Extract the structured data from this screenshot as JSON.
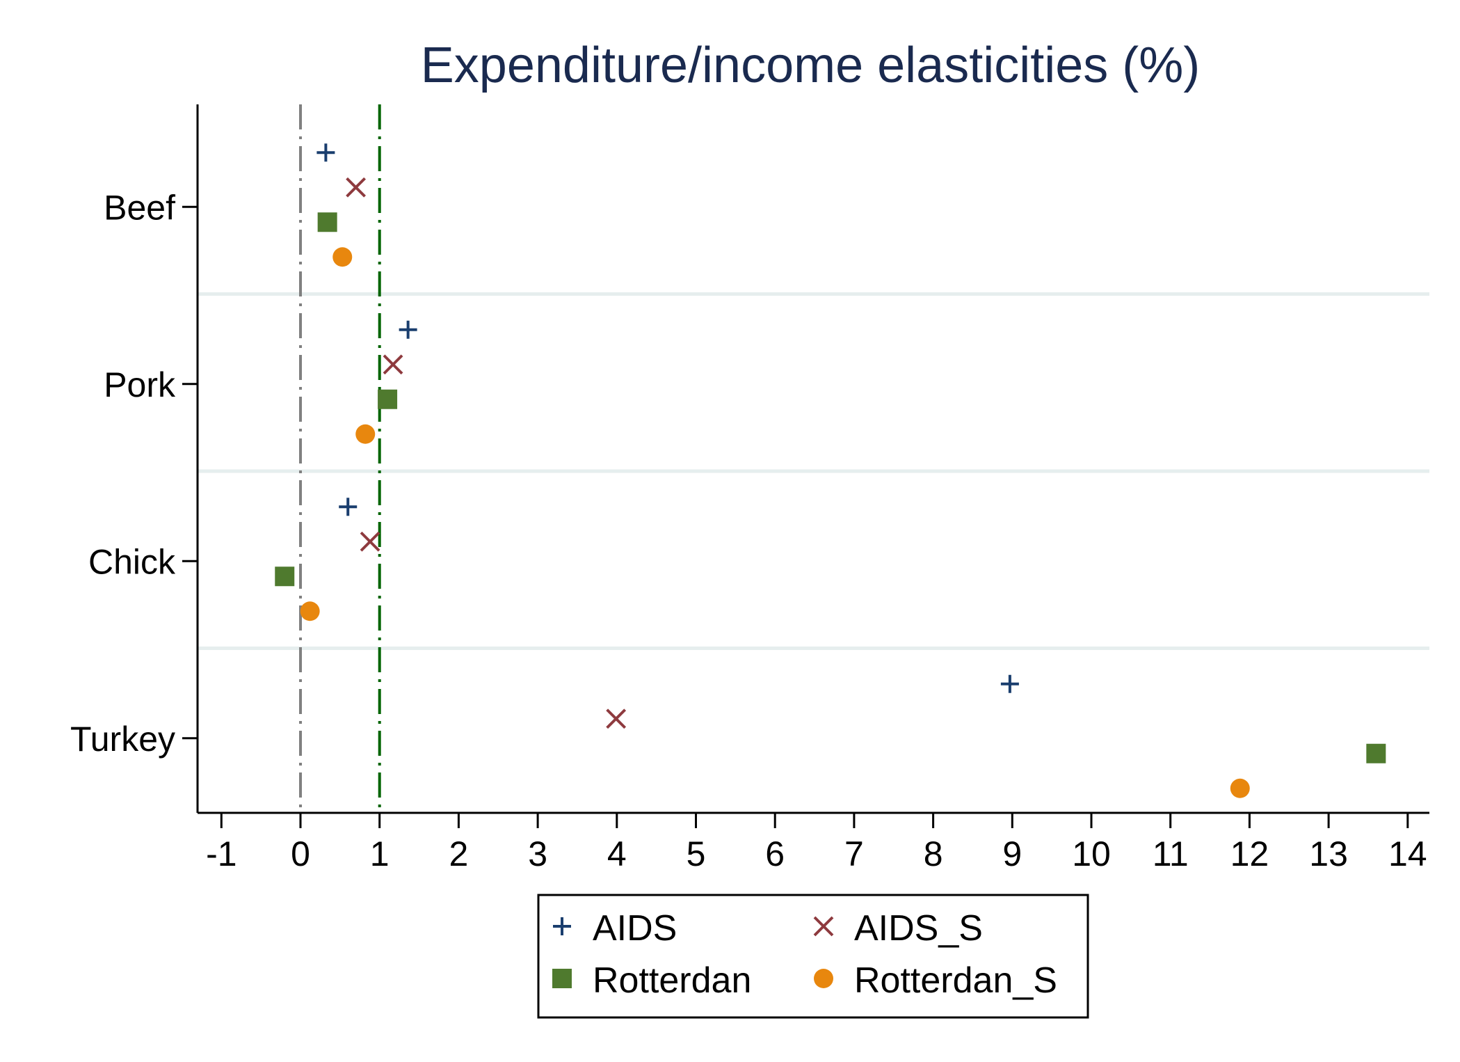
{
  "chart_data": {
    "type": "scatter",
    "title": "Expenditure/income elasticities (%)",
    "xlabel": "",
    "ylabel": "",
    "categories": [
      "Beef",
      "Pork",
      "Chick",
      "Turkey"
    ],
    "x_ticks": [
      "-1",
      "0",
      "1",
      "2",
      "3",
      "4",
      "5",
      "6",
      "7",
      "8",
      "9",
      "10",
      "11",
      "12",
      "13",
      "14"
    ],
    "xlim": [
      -1.3,
      14.3
    ],
    "grid": false,
    "legend_position": "bottom",
    "reference_lines": [
      {
        "value": 0,
        "color": "#808080",
        "style": "dash-dot"
      },
      {
        "value": 1,
        "color": "#006400",
        "style": "dash-dot"
      }
    ],
    "series": [
      {
        "name": "AIDS",
        "marker": "plus",
        "color": "#1a3e6e",
        "values": [
          0.32,
          1.36,
          0.6,
          8.97
        ]
      },
      {
        "name": "AIDS_S",
        "marker": "cross",
        "color": "#8e3a3e",
        "values": [
          0.7,
          1.17,
          0.88,
          3.99
        ]
      },
      {
        "name": "Rotterdan",
        "marker": "square",
        "color": "#4f7a2e",
        "values": [
          0.34,
          1.1,
          -0.2,
          13.6
        ]
      },
      {
        "name": "Rotterdan_S",
        "marker": "circle",
        "color": "#e8870e",
        "values": [
          0.53,
          0.82,
          0.12,
          11.88
        ]
      }
    ]
  }
}
